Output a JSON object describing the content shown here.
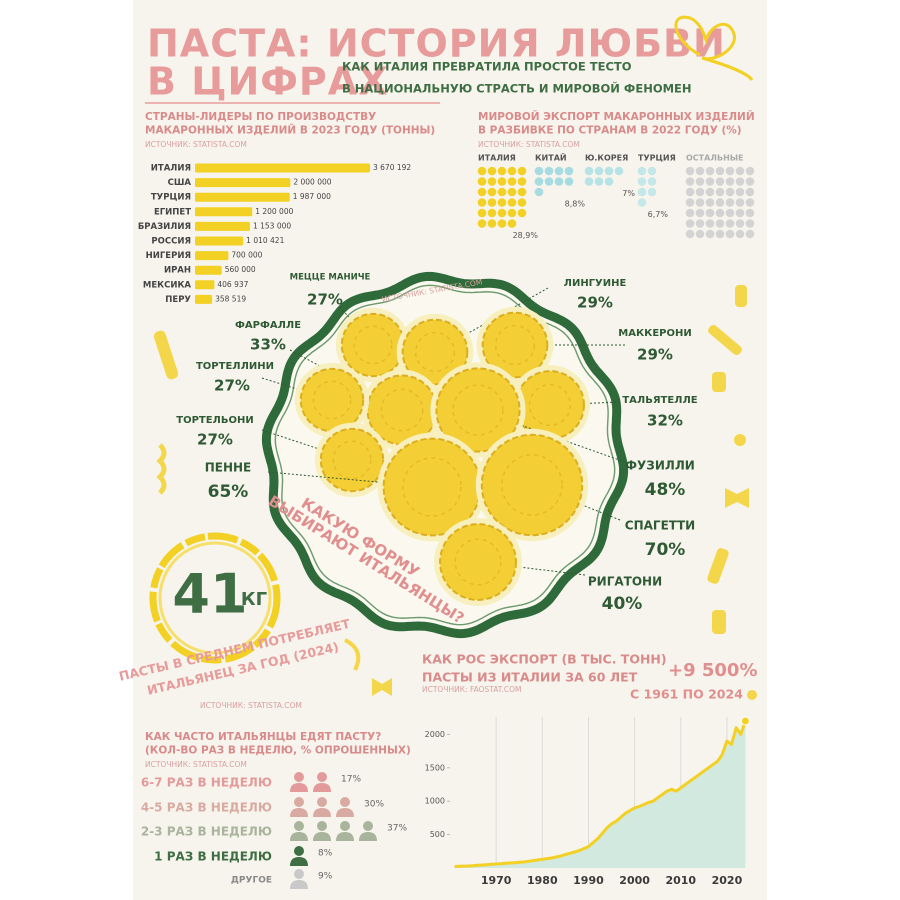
{
  "header": {
    "title_lines": [
      "ПАСТА: ИСТОРИЯ ЛЮБВИ",
      "В ЦИФРАХ"
    ],
    "subtitle_lines": [
      "КАК ИТАЛИЯ ПРЕВРАТИЛА ПРОСТОЕ ТЕСТО",
      "В НАЦИОНАЛЬНУЮ СТРАСТЬ И МИРОВОЙ ФЕНОМЕН"
    ]
  },
  "consumption": {
    "value": 41,
    "unit": "КГ",
    "text_lines": [
      "ПАСТЫ В СРЕДНЕМ ПОТРЕБЛЯЕТ",
      "ИТАЛЬЯНЕЦ ЗА ГОД (2024)"
    ],
    "source": "ИСТОЧНИК: STATISTA.COM"
  },
  "chart_data": [
    {
      "type": "bar",
      "title": [
        "СТРАНЫ-ЛИДЕРЫ ПО ПРОИЗВОДСТВУ",
        "МАКАРОННЫХ ИЗДЕЛИЙ В 2023 ГОДУ (ТОННЫ)"
      ],
      "source": "ИСТОЧНИК: STATISTA.COM",
      "categories": [
        "ИТАЛИЯ",
        "США",
        "ТУРЦИЯ",
        "ЕГИПЕТ",
        "БРАЗИЛИЯ",
        "РОССИЯ",
        "НИГЕРИЯ",
        "ИРАН",
        "МЕКСИКА",
        "ПЕРУ"
      ],
      "values": [
        3670192,
        2000000,
        1987000,
        1200000,
        1153000,
        1010421,
        700000,
        560000,
        406937,
        358519
      ],
      "value_labels": [
        "3 670 192",
        "2 000 000",
        "1 987 000",
        "1 200 000",
        "1 153 000",
        "1 010 421",
        "700 000",
        "560 000",
        "406 937",
        "358 519"
      ],
      "color": "#f2d024"
    },
    {
      "type": "waffle",
      "title": [
        "МИРОВОЙ ЭКСПОРТ МАКАРОННЫХ ИЗДЕЛИЙ",
        "В РАЗБИВКЕ ПО СТРАНАМ В 2022 ГОДУ (%)"
      ],
      "source": "ИСТОЧНИК: STATISTA.COM",
      "categories": [
        "ИТАЛИЯ",
        "КИТАЙ",
        "Ю.КОРЕЯ",
        "ТУРЦИЯ",
        "ОСТАЛЬНЫЕ"
      ],
      "values": [
        28.9,
        8.8,
        7,
        6.7,
        48.6
      ],
      "value_labels": [
        "28,9%",
        "8,8%",
        "7%",
        "6,7%",
        null
      ],
      "colors": [
        "#f2d024",
        "#a6dbe2",
        "#b7e2e6",
        "#c4e7ea",
        "#d3d3d3"
      ]
    },
    {
      "type": "bubble",
      "title": [
        "КАКУЮ ФОРМУ",
        "ВЫБИРАЮТ ИТАЛЬЯНЦЫ?"
      ],
      "source": "ИСТОЧНИК: STATISTA.COM",
      "categories": [
        "МЕЦЦЕ МАНИЧЕ",
        "ЛИНГУИНЕ",
        "ФАРФАЛЛЕ",
        "МАККЕРОНИ",
        "ТОРТЕЛЛИНИ",
        "ТАЛЬЯТЕЛЛЕ",
        "ТОРТЕЛЬОНИ",
        "ФУЗИЛЛИ",
        "ПЕННЕ",
        "СПАГЕТТИ",
        "РИГАТОНИ"
      ],
      "values": [
        27,
        29,
        33,
        29,
        27,
        32,
        27,
        48,
        65,
        70,
        40
      ],
      "value_labels": [
        "27%",
        "29%",
        "33%",
        "29%",
        "27%",
        "32%",
        "27%",
        "48%",
        "65%",
        "70%",
        "40%"
      ],
      "color": "#f3cf35"
    },
    {
      "type": "pictogram",
      "title": [
        "КАК ЧАСТО ИТАЛЬЯНЦЫ ЕДЯТ ПАСТУ?",
        "(КОЛ-ВО РАЗ В НЕДЕЛЮ, % ОПРОШЕННЫХ)"
      ],
      "source": "ИСТОЧНИК: STATISTA.COM",
      "categories": [
        "6-7 РАЗ В НЕДЕЛЮ",
        "4-5 РАЗ В НЕДЕЛЮ",
        "2-3 РАЗ В НЕДЕЛЮ",
        "1 РАЗ В НЕДЕЛЮ",
        "ДРУГОЕ"
      ],
      "values": [
        17,
        30,
        37,
        8,
        9
      ],
      "value_labels": [
        "17%",
        "30%",
        "37%",
        "8%",
        "9%"
      ],
      "colors": [
        "#e39a9a",
        "#d9aaa2",
        "#a9b49c",
        "#3f6e45",
        "#c9c9c9"
      ]
    },
    {
      "type": "line",
      "title": [
        "КАК РОС ЭКСПОРТ (В ТЫС. ТОНН)",
        "ПАСТЫ ИЗ ИТАЛИИ ЗА 60 ЛЕТ"
      ],
      "source": "ИСТОЧНИК: FAOSTAT.COM",
      "annotation": "+9 500%",
      "annotation_sub": "С 1961 ПО 2024",
      "x": [
        1961,
        1962,
        1963,
        1964,
        1965,
        1966,
        1967,
        1968,
        1969,
        1970,
        1971,
        1972,
        1973,
        1974,
        1975,
        1976,
        1977,
        1978,
        1979,
        1980,
        1981,
        1982,
        1983,
        1984,
        1985,
        1986,
        1987,
        1988,
        1989,
        1990,
        1991,
        1992,
        1993,
        1994,
        1995,
        1996,
        1997,
        1998,
        1999,
        2000,
        2001,
        2002,
        2003,
        2004,
        2005,
        2006,
        2007,
        2008,
        2009,
        2010,
        2011,
        2012,
        2013,
        2014,
        2015,
        2016,
        2017,
        2018,
        2019,
        2020,
        2021,
        2022,
        2023,
        2024
      ],
      "values": [
        23,
        25,
        28,
        30,
        35,
        40,
        45,
        50,
        55,
        60,
        65,
        70,
        75,
        80,
        85,
        90,
        100,
        110,
        120,
        130,
        140,
        150,
        165,
        180,
        200,
        220,
        240,
        260,
        290,
        320,
        380,
        440,
        520,
        600,
        660,
        700,
        760,
        820,
        860,
        900,
        920,
        950,
        980,
        1000,
        1050,
        1100,
        1150,
        1180,
        1150,
        1200,
        1250,
        1300,
        1350,
        1400,
        1450,
        1500,
        1550,
        1600,
        1700,
        1900,
        1850,
        2100,
        2000,
        2200
      ],
      "xlim": [
        1960,
        2025
      ],
      "ylim": [
        0,
        2200
      ],
      "xticks": [
        1970,
        1980,
        1990,
        2000,
        2010,
        2020
      ],
      "yticks": [
        500,
        1000,
        1500,
        2000
      ],
      "color": "#f2d024",
      "fill": "#d2e9e0",
      "grid": true
    }
  ]
}
